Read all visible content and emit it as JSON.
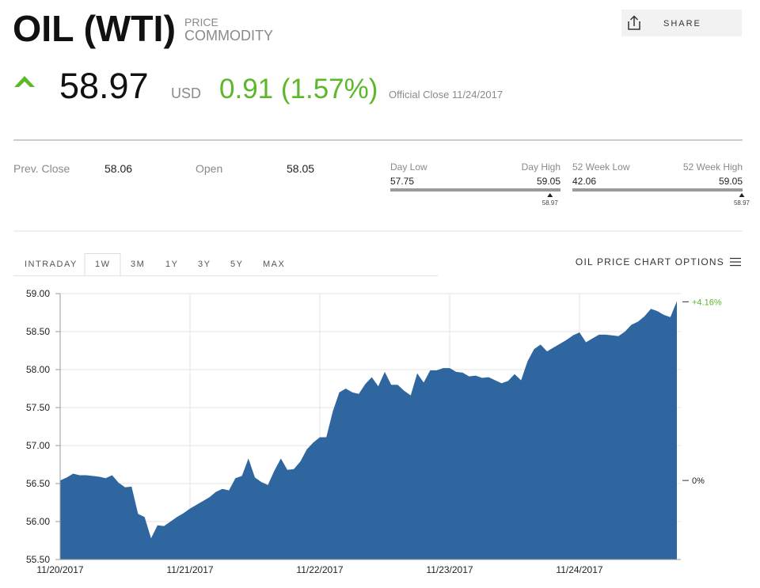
{
  "header": {
    "title": "OIL (WTI)",
    "kind_label": "PRICE",
    "kind": "COMMODITY",
    "share": "SHARE",
    "price": "58.97",
    "currency": "USD",
    "change": "0.91 (1.57%)",
    "official_close": "Official Close 11/24/2017"
  },
  "stats": {
    "prev_close_label": "Prev. Close",
    "prev_close": "58.06",
    "open_label": "Open",
    "open": "58.05"
  },
  "ranges": [
    {
      "low_label": "Day Low",
      "high_label": "Day High",
      "low": 57.75,
      "high": 59.05,
      "current": 58.97
    },
    {
      "low_label": "52 Week Low",
      "high_label": "52 Week High",
      "low": 42.06,
      "high": 59.05,
      "current": 58.97
    }
  ],
  "tabs": {
    "items": [
      "INTRADAY",
      "1W",
      "3M",
      "1Y",
      "3Y",
      "5Y",
      "MAX"
    ],
    "active": "1W",
    "options": "OIL PRICE CHART OPTIONS"
  },
  "chart_data": {
    "type": "area",
    "categories": [
      "11/20/2017",
      null,
      null,
      null,
      null,
      null,
      null,
      null,
      null,
      null,
      null,
      null,
      null,
      null,
      null,
      null,
      null,
      null,
      null,
      null,
      "11/21/2017",
      null,
      null,
      null,
      null,
      null,
      null,
      null,
      null,
      null,
      null,
      null,
      null,
      null,
      null,
      null,
      null,
      null,
      null,
      null,
      "11/22/2017",
      null,
      null,
      null,
      null,
      null,
      null,
      null,
      null,
      null,
      null,
      null,
      null,
      null,
      null,
      null,
      null,
      null,
      null,
      null,
      "11/23/2017",
      null,
      null,
      null,
      null,
      null,
      null,
      null,
      null,
      null,
      null,
      null,
      null,
      null,
      null,
      null,
      null,
      null,
      null,
      null,
      "11/24/2017",
      null,
      null,
      null,
      null,
      null,
      null,
      null,
      null,
      null,
      null,
      null,
      null,
      null,
      null,
      null
    ],
    "series": [
      {
        "color": "#2f66a0",
        "values": [
          56.54,
          56.58,
          56.63,
          56.61,
          56.61,
          56.6,
          56.59,
          56.57,
          56.61,
          56.51,
          56.45,
          56.46,
          56.1,
          56.06,
          55.78,
          55.95,
          55.94,
          56.0,
          56.06,
          56.11,
          56.17,
          56.22,
          56.27,
          56.32,
          56.39,
          56.43,
          56.41,
          56.57,
          56.6,
          56.83,
          56.58,
          56.52,
          56.48,
          56.67,
          56.83,
          56.68,
          56.69,
          56.79,
          56.95,
          57.04,
          57.11,
          57.11,
          57.45,
          57.7,
          57.75,
          57.7,
          57.68,
          57.81,
          57.9,
          57.78,
          57.97,
          57.8,
          57.8,
          57.72,
          57.66,
          57.95,
          57.83,
          57.99,
          57.99,
          58.02,
          58.02,
          57.97,
          57.96,
          57.91,
          57.92,
          57.89,
          57.9,
          57.86,
          57.82,
          57.85,
          57.94,
          57.86,
          58.11,
          58.27,
          58.33,
          58.24,
          58.29,
          58.34,
          58.39,
          58.45,
          58.49,
          58.36,
          58.41,
          58.46,
          58.46,
          58.45,
          58.44,
          58.5,
          58.59,
          58.63,
          58.7,
          58.8,
          58.77,
          58.72,
          58.69,
          58.9
        ]
      }
    ],
    "ylim": [
      55.5,
      59
    ],
    "yticks": [
      {
        "value": 55.5,
        "label": "55.50"
      },
      {
        "value": 56,
        "label": "56.00"
      },
      {
        "value": 56.5,
        "label": "56.50"
      },
      {
        "value": 57,
        "label": "57.00"
      },
      {
        "value": 57.5,
        "label": "57.50"
      },
      {
        "value": 58,
        "label": "58.00"
      },
      {
        "value": 58.5,
        "label": "58.50"
      },
      {
        "value": 59,
        "label": "59.00"
      }
    ],
    "y2lim": [
      -1.84,
      4.35
    ],
    "y2ticks": [
      {
        "value": 0,
        "label": "0%"
      },
      {
        "value": 4.16,
        "label": "+4.16%"
      }
    ],
    "grid": true
  }
}
